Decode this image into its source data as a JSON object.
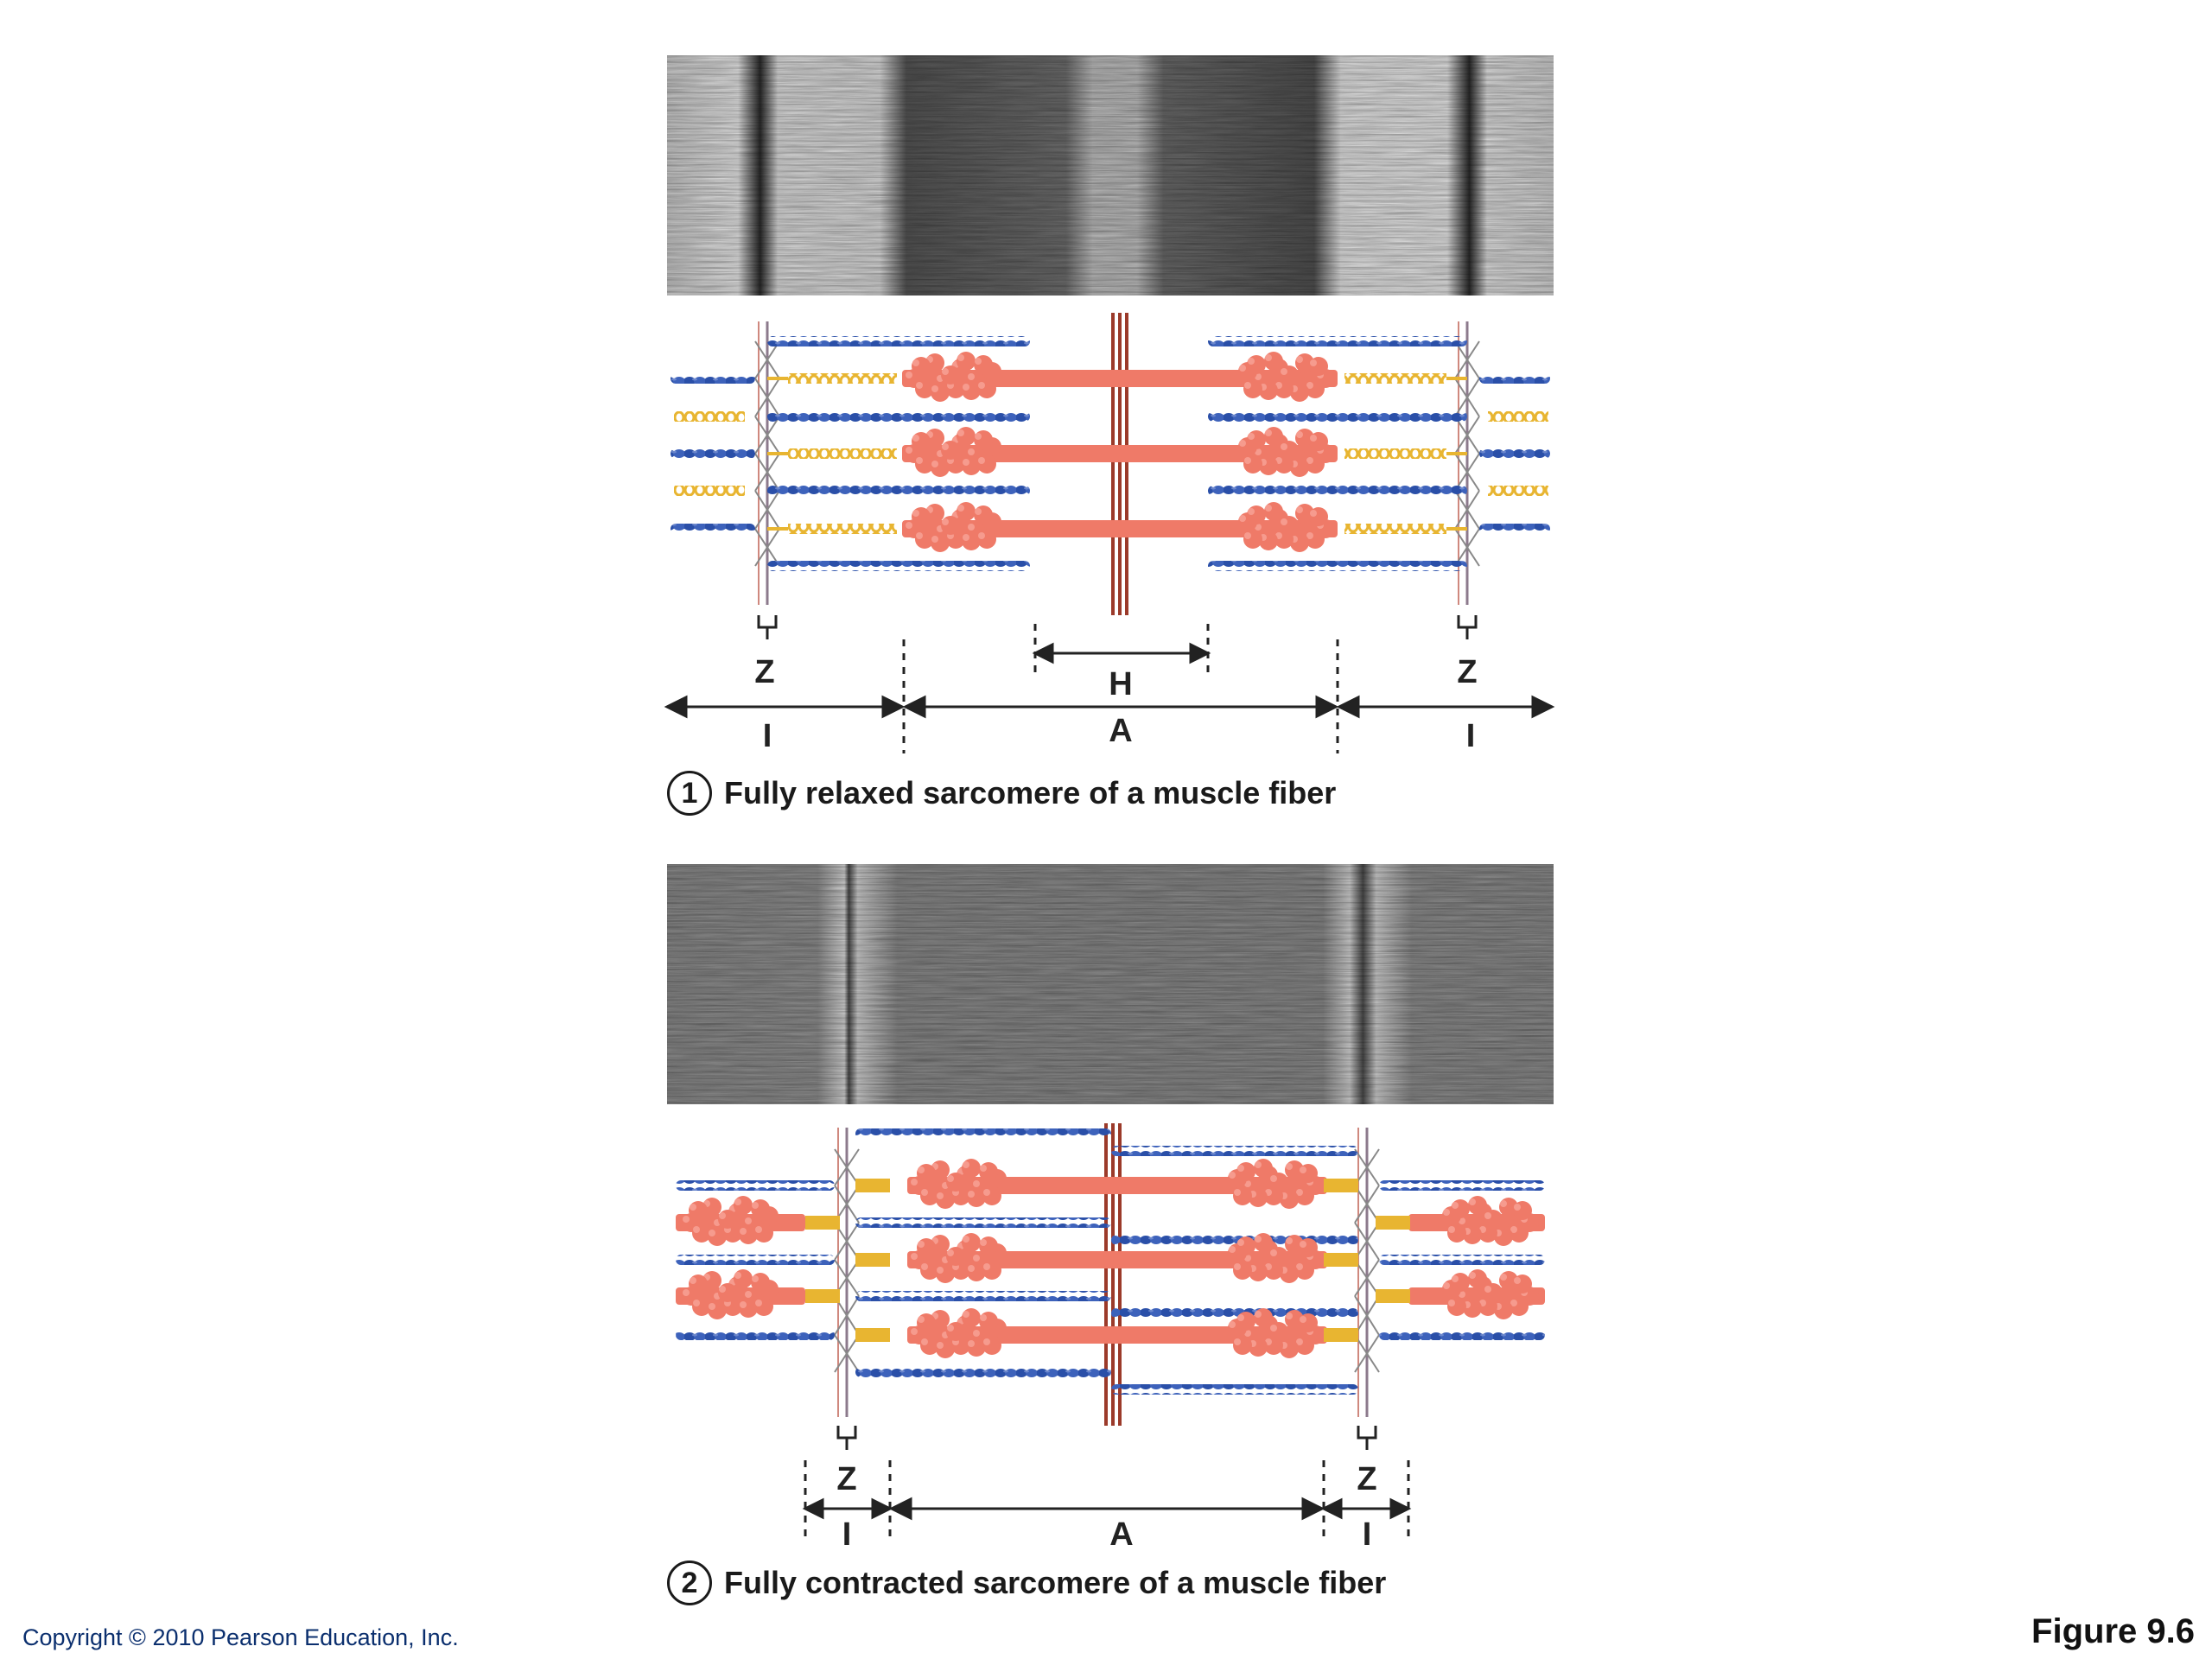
{
  "panels": [
    {
      "number": "1",
      "caption": "Fully relaxed sarcomere of a muscle fiber",
      "labels": {
        "z_left": "Z",
        "z_right": "Z",
        "h": "H",
        "a": "A",
        "i_left": "I",
        "i_right": "I"
      }
    },
    {
      "number": "2",
      "caption": "Fully contracted sarcomere of a muscle fiber",
      "labels": {
        "z_left": "Z",
        "z_right": "Z",
        "a": "A",
        "i_left": "I",
        "i_right": "I"
      }
    }
  ],
  "footer": {
    "copyright": "Copyright © 2010 Pearson Education, Inc.",
    "figure": "Figure 9.6"
  },
  "colors": {
    "actin": "#2a4fa8",
    "myosin": "#ef7a68",
    "titin": "#e8b531",
    "z_disc": "#8c7a8c",
    "m_line": "#9b3a2a"
  }
}
